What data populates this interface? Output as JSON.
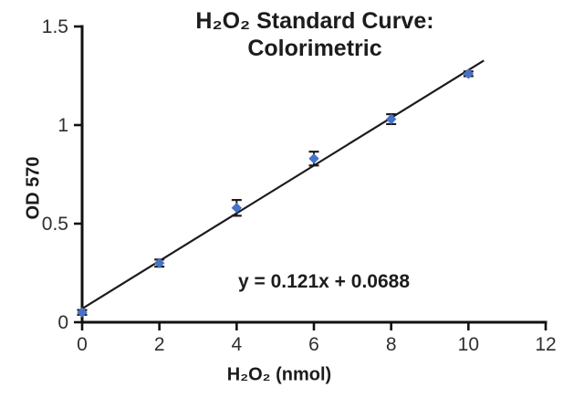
{
  "chart_data": {
    "type": "scatter",
    "title_lines": [
      "H₂O₂ Standard Curve:",
      "Colorimetric"
    ],
    "xlabel": "H₂O₂ (nmol)",
    "ylabel": "OD 570",
    "x": [
      0,
      2,
      4,
      6,
      8,
      10
    ],
    "y": [
      0.05,
      0.3,
      0.58,
      0.83,
      1.03,
      1.26
    ],
    "y_err": [
      0.012,
      0.018,
      0.04,
      0.035,
      0.025,
      0.012
    ],
    "trendline": {
      "slope": 0.121,
      "intercept": 0.0688,
      "x_start": 0,
      "x_end": 10.4,
      "label": "y = 0.121x + 0.0688"
    },
    "xlim": [
      0,
      12
    ],
    "ylim": [
      0,
      1.5
    ],
    "xticks": [
      0,
      2,
      4,
      6,
      8,
      10,
      12
    ],
    "yticks": [
      0,
      0.5,
      1,
      1.5
    ],
    "xtick_labels": [
      "0",
      "2",
      "4",
      "6",
      "8",
      "10",
      "12"
    ],
    "ytick_labels": [
      "0",
      "0.5",
      "1",
      "1.5"
    ],
    "grid": false,
    "legend": false,
    "marker": {
      "shape": "diamond",
      "color": "#4673c8",
      "size": 5
    },
    "line_color": "#1c1c1e",
    "error_bar_color": "#1e1e1e",
    "axis_color": "#111111",
    "tick_label_color": "#2f2f2f"
  }
}
